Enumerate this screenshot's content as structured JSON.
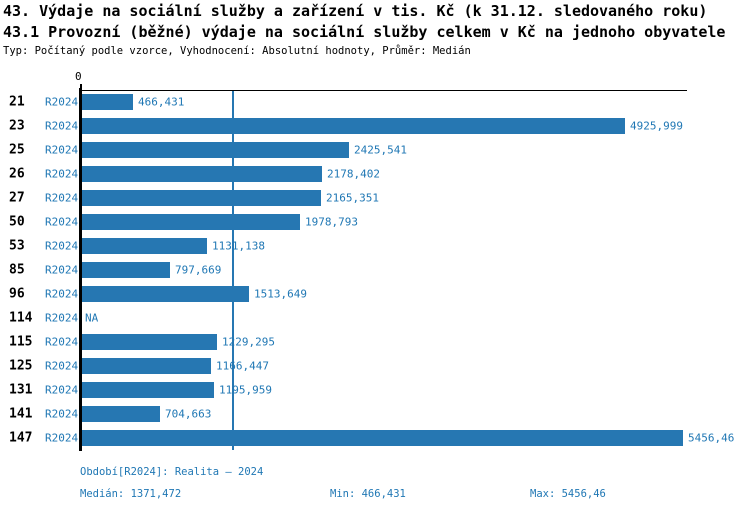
{
  "colors": {
    "accent": "#1f77b4",
    "bar": "#2677b2",
    "axis": "#000000"
  },
  "chart_data": {
    "type": "bar",
    "orientation": "horizontal",
    "title": "43. Výdaje na sociální služby a zařízení v tis. Kč (k 31.12. sledovaného roku)",
    "subtitle": "43.1 Provozní (běžné) výdaje na sociální služby celkem v Kč na jednoho obyvatele",
    "meta": "Typ: Počítaný podle vzorce, Vyhodnocení: Absolutní hodnoty, Průměr: Medián",
    "series_label": "R2024",
    "categories": [
      "21",
      "23",
      "25",
      "26",
      "27",
      "50",
      "53",
      "85",
      "96",
      "114",
      "115",
      "125",
      "131",
      "141",
      "147"
    ],
    "values": [
      466.431,
      4925.999,
      2425.541,
      2178.402,
      2165.351,
      1978.793,
      1131.138,
      797.669,
      1513.649,
      null,
      1229.295,
      1166.447,
      1195.959,
      704.663,
      5456.46
    ],
    "value_labels": [
      "466,431",
      "4925,999",
      "2425,541",
      "2178,402",
      "2165,351",
      "1978,793",
      "1131,138",
      "797,669",
      "1513,649",
      "NA",
      "1229,295",
      "1166,447",
      "1195,959",
      "704,663",
      "5456,46"
    ],
    "x_axis_ticks": [
      "0"
    ],
    "xlim": [
      0,
      5500
    ],
    "median_value": 1371.472,
    "grid": false,
    "legend": false
  },
  "footer": {
    "period": "Období[R2024]: Realita – 2024",
    "median": "Medián: 1371,472",
    "min": "Min: 466,431",
    "max": "Max: 5456,46"
  }
}
